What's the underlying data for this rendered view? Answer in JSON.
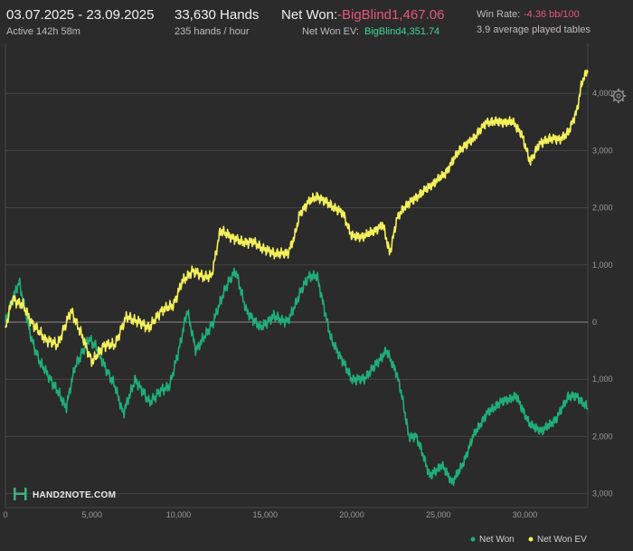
{
  "header": {
    "date_range": "03.07.2025 - 23.09.2025",
    "active_time": "Active 142h 58m",
    "hands_label": "33,630 Hands",
    "hands_rate": "235 hands / hour",
    "net_won_label": "Net Won:",
    "net_won_value": "-BigBlind1,467.06",
    "net_won_ev_label": "Net Won  EV:",
    "net_won_ev_value": "BigBlind4,351.74",
    "win_rate_label": "Win Rate:",
    "win_rate_value": "-4.36 bb/100",
    "tables_text": "3.9 average played tables"
  },
  "icons": {
    "settings": "gear-icon",
    "logo": "hand2note-logo-icon"
  },
  "logo_text": "HAND2NOTE.COM",
  "colors": {
    "net_won": "#1fae78",
    "net_won_ev": "#f3f05a",
    "negative": "#e8577a",
    "positive": "#3fd69a",
    "background": "#2b2b2b"
  },
  "chart_data": {
    "type": "line",
    "xlim": [
      0,
      33630
    ],
    "ylim": [
      -3000,
      4500
    ],
    "x_ticks": [
      0,
      5000,
      10000,
      15000,
      20000,
      25000,
      30000
    ],
    "x_tick_labels": [
      "0",
      "5,000",
      "10,000",
      "15,000",
      "20,000",
      "25,000",
      "30,000"
    ],
    "y_ticks": [
      4000,
      3000,
      2000,
      1000,
      0,
      -1000,
      -2000,
      -3000
    ],
    "y_tick_labels": [
      "4,000",
      "3,000",
      "2,000",
      "1,000",
      "0",
      "1,000",
      "2,000",
      "3,000"
    ],
    "grid": true,
    "legend_position": "bottom-right",
    "series": [
      {
        "name": "Net Won",
        "color": "#1fae78",
        "points": [
          [
            0,
            0
          ],
          [
            300,
            300
          ],
          [
            800,
            700
          ],
          [
            1500,
            -300
          ],
          [
            2000,
            -700
          ],
          [
            3000,
            -1200
          ],
          [
            3500,
            -1500
          ],
          [
            4000,
            -800
          ],
          [
            4800,
            -300
          ],
          [
            5200,
            -400
          ],
          [
            5600,
            -700
          ],
          [
            6300,
            -1100
          ],
          [
            6800,
            -1600
          ],
          [
            7500,
            -1000
          ],
          [
            8300,
            -1400
          ],
          [
            9000,
            -1200
          ],
          [
            9500,
            -1100
          ],
          [
            10000,
            -500
          ],
          [
            10500,
            200
          ],
          [
            11000,
            -500
          ],
          [
            12000,
            0
          ],
          [
            12700,
            600
          ],
          [
            13300,
            900
          ],
          [
            13900,
            200
          ],
          [
            14700,
            -100
          ],
          [
            15500,
            100
          ],
          [
            16300,
            0
          ],
          [
            17000,
            500
          ],
          [
            17500,
            800
          ],
          [
            18000,
            800
          ],
          [
            18800,
            -300
          ],
          [
            19500,
            -700
          ],
          [
            20000,
            -1000
          ],
          [
            20700,
            -1000
          ],
          [
            21500,
            -700
          ],
          [
            22000,
            -500
          ],
          [
            22600,
            -900
          ],
          [
            22900,
            -1300
          ],
          [
            23300,
            -2000
          ],
          [
            23700,
            -2000
          ],
          [
            24100,
            -2300
          ],
          [
            24500,
            -2700
          ],
          [
            25200,
            -2500
          ],
          [
            25800,
            -2800
          ],
          [
            26400,
            -2500
          ],
          [
            27000,
            -2000
          ],
          [
            27800,
            -1600
          ],
          [
            28600,
            -1400
          ],
          [
            29500,
            -1300
          ],
          [
            30300,
            -1800
          ],
          [
            31000,
            -1900
          ],
          [
            31800,
            -1700
          ],
          [
            32500,
            -1300
          ],
          [
            33000,
            -1300
          ],
          [
            33630,
            -1500
          ]
        ]
      },
      {
        "name": "Net Won  EV",
        "color": "#f3f05a",
        "points": [
          [
            0,
            -100
          ],
          [
            400,
            400
          ],
          [
            1000,
            300
          ],
          [
            1500,
            0
          ],
          [
            2300,
            -300
          ],
          [
            3000,
            -400
          ],
          [
            3800,
            200
          ],
          [
            4500,
            -300
          ],
          [
            5000,
            -700
          ],
          [
            5700,
            -400
          ],
          [
            6300,
            -400
          ],
          [
            7000,
            100
          ],
          [
            7700,
            0
          ],
          [
            8300,
            -100
          ],
          [
            9000,
            200
          ],
          [
            9700,
            300
          ],
          [
            10200,
            700
          ],
          [
            10800,
            900
          ],
          [
            11400,
            800
          ],
          [
            11900,
            800
          ],
          [
            12400,
            1600
          ],
          [
            13000,
            1500
          ],
          [
            13600,
            1400
          ],
          [
            14300,
            1400
          ],
          [
            14800,
            1300
          ],
          [
            15500,
            1200
          ],
          [
            16300,
            1200
          ],
          [
            16700,
            1500
          ],
          [
            17000,
            1900
          ],
          [
            17500,
            2100
          ],
          [
            18000,
            2200
          ],
          [
            18500,
            2100
          ],
          [
            19000,
            2000
          ],
          [
            19500,
            1900
          ],
          [
            20000,
            1500
          ],
          [
            20700,
            1500
          ],
          [
            21300,
            1600
          ],
          [
            21800,
            1700
          ],
          [
            22200,
            1200
          ],
          [
            22600,
            1800
          ],
          [
            23000,
            2000
          ],
          [
            23800,
            2200
          ],
          [
            24600,
            2400
          ],
          [
            25400,
            2600
          ],
          [
            26200,
            3000
          ],
          [
            27000,
            3200
          ],
          [
            27800,
            3500
          ],
          [
            28500,
            3500
          ],
          [
            29300,
            3500
          ],
          [
            29800,
            3300
          ],
          [
            30300,
            2800
          ],
          [
            30800,
            3100
          ],
          [
            31300,
            3200
          ],
          [
            32000,
            3200
          ],
          [
            32500,
            3300
          ],
          [
            33000,
            3700
          ],
          [
            33300,
            4200
          ],
          [
            33630,
            4400
          ]
        ]
      }
    ]
  }
}
